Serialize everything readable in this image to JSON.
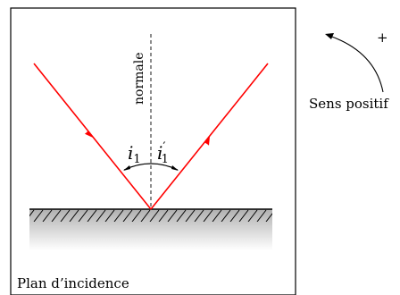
{
  "diagram": {
    "normal_label": "normale",
    "angle_incident": "i",
    "angle_incident_sub": "1",
    "angle_reflected": "i",
    "angle_reflected_prime": "′",
    "angle_reflected_sub": "1",
    "plane_label": "Plan d’incidence",
    "direction_label": "Sens positif",
    "plus_sign": "+",
    "colors": {
      "ray": "#ff0000",
      "stroke": "#000000",
      "mirror_shadow_top": "#b0b0b0",
      "mirror_shadow_bottom": "#ffffff"
    }
  }
}
